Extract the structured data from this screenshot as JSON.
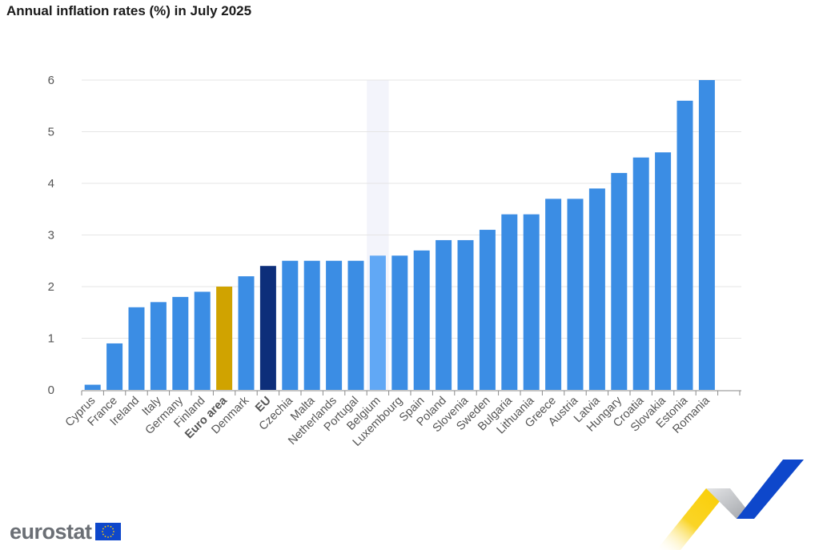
{
  "brand": {
    "logo_text": "eurostat",
    "logo_icon": "eu-flag-icon",
    "colors": {
      "flag_blue": "#0e47cb",
      "flag_star": "#ffcc00",
      "deco_yellow": "#f9cd00",
      "deco_blue": "#0e47cb",
      "deco_grey": "#b7b9bd"
    }
  },
  "chart_data": {
    "type": "bar",
    "title": "Annual inflation rates (%) in July 2025",
    "xlabel": "",
    "ylabel": "",
    "ylim": [
      0,
      6
    ],
    "yticks": [
      "0",
      "1",
      "2",
      "3",
      "4",
      "5",
      "6"
    ],
    "grid": true,
    "legend": "none",
    "categories": [
      "Cyprus",
      "France",
      "Ireland",
      "Italy",
      "Germany",
      "Finland",
      "Euro area",
      "Denmark",
      "EU",
      "Czechia",
      "Malta",
      "Netherlands",
      "Portugal",
      "Belgium",
      "Luxembourg",
      "Spain",
      "Poland",
      "Slovenia",
      "Sweden",
      "Bulgaria",
      "Lithuania",
      "Greece",
      "Austria",
      "Latvia",
      "Hungary",
      "Croatia",
      "Slovakia",
      "Estonia",
      "Romania"
    ],
    "values": [
      0.1,
      0.9,
      1.6,
      1.7,
      1.8,
      1.9,
      2.0,
      2.2,
      2.4,
      2.5,
      2.5,
      2.5,
      2.5,
      2.6,
      2.6,
      2.7,
      2.9,
      2.9,
      3.1,
      3.4,
      3.4,
      3.7,
      3.7,
      3.9,
      4.2,
      4.5,
      4.6,
      5.6,
      6.0
    ],
    "bold_labels": [
      "Euro area",
      "EU"
    ],
    "highlighted": "Belgium",
    "colors": {
      "default": "#3b8de4",
      "Euro area": "#d0a300",
      "EU": "#0d2e7a",
      "Belgium": "#61a8f5",
      "highlight_band": "#f3f4fb",
      "grid": "#e5e5e5",
      "axis": "#8a8a8a"
    }
  }
}
